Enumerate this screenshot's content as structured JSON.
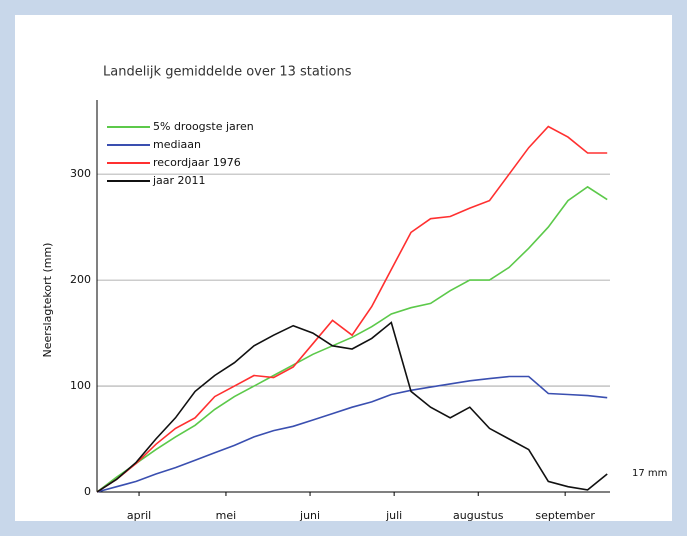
{
  "chart_data": {
    "type": "line",
    "title": "Landelijk gemiddelde over 13 stations",
    "y_label": "Neerslagtekort (mm)",
    "annotation": "17 mm",
    "x": [
      0,
      7,
      14,
      21,
      28,
      35,
      42,
      49,
      56,
      63,
      70,
      77,
      84,
      91,
      98,
      105,
      112,
      119,
      126,
      133,
      140,
      147,
      154,
      161,
      168,
      175,
      182
    ],
    "xlim": [
      0,
      183
    ],
    "xticks": [
      {
        "value": 15,
        "label": "april"
      },
      {
        "value": 46,
        "label": "mei"
      },
      {
        "value": 76,
        "label": "juni"
      },
      {
        "value": 106,
        "label": "juli"
      },
      {
        "value": 136,
        "label": "augustus"
      },
      {
        "value": 167,
        "label": "september"
      }
    ],
    "ylim": [
      0,
      370
    ],
    "yticks": [
      0,
      100,
      200,
      300
    ],
    "grid": true,
    "series": [
      {
        "name": "5% droogste jaren",
        "color": "#5cc94a",
        "values": [
          0,
          14,
          27,
          40,
          52,
          63,
          78,
          90,
          100,
          110,
          120,
          130,
          138,
          146,
          156,
          168,
          174,
          178,
          190,
          200,
          200,
          212,
          230,
          250,
          275,
          288,
          276
        ]
      },
      {
        "name": "mediaan",
        "color": "#3a4fb0",
        "values": [
          0,
          5,
          10,
          17,
          23,
          30,
          37,
          44,
          52,
          58,
          62,
          68,
          74,
          80,
          85,
          92,
          96,
          99,
          102,
          105,
          107,
          109,
          109,
          93,
          92,
          91,
          89
        ]
      },
      {
        "name": "recordjaar 1976",
        "color": "#ff3030",
        "values": [
          0,
          12,
          27,
          45,
          60,
          70,
          90,
          100,
          110,
          108,
          118,
          140,
          162,
          148,
          175,
          210,
          245,
          258,
          260,
          268,
          275,
          300,
          325,
          345,
          335,
          320,
          320
        ]
      },
      {
        "name": "jaar 2011",
        "color": "#111111",
        "values": [
          0,
          12,
          28,
          50,
          70,
          95,
          110,
          122,
          138,
          148,
          157,
          150,
          138,
          135,
          145,
          160,
          95,
          80,
          70,
          80,
          60,
          50,
          40,
          10,
          5,
          2,
          17
        ]
      }
    ]
  }
}
